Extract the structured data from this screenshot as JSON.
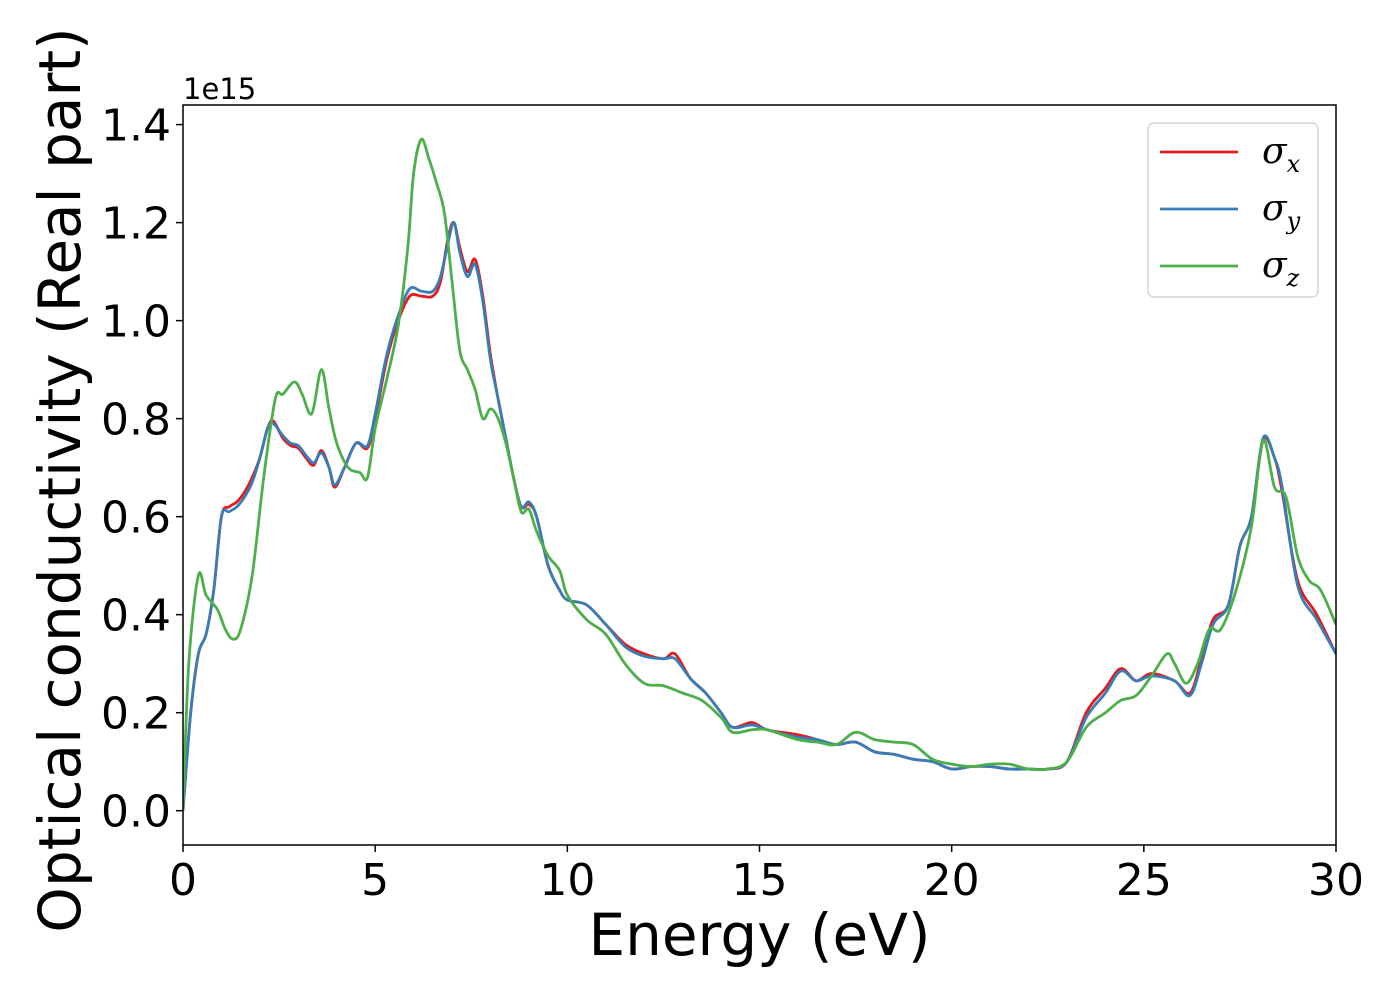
{
  "chart_data": {
    "type": "line",
    "title": "",
    "xlabel": "Energy (eV)",
    "ylabel": "Optical conductivity (Real part)",
    "y_offset_label": "1e15",
    "xlim": [
      0,
      30
    ],
    "ylim": [
      -0.07,
      1.44
    ],
    "xticks": [
      0,
      5,
      10,
      15,
      20,
      25,
      30
    ],
    "xtick_labels": [
      "0",
      "5",
      "10",
      "15",
      "20",
      "25",
      "30"
    ],
    "yticks": [
      0.0,
      0.2,
      0.4,
      0.6,
      0.8,
      1.0,
      1.2,
      1.4
    ],
    "ytick_labels": [
      "0.0",
      "0.2",
      "0.4",
      "0.6",
      "0.8",
      "1.0",
      "1.2",
      "1.4"
    ],
    "grid": false,
    "legend": "top-right",
    "series": [
      {
        "name": "σx",
        "symbol": "σ",
        "subscript": "x",
        "color": "#e41a1c",
        "points": [
          [
            0,
            0.0
          ],
          [
            0.2,
            0.2
          ],
          [
            0.4,
            0.32
          ],
          [
            0.6,
            0.36
          ],
          [
            0.8,
            0.45
          ],
          [
            1.0,
            0.6
          ],
          [
            1.2,
            0.62
          ],
          [
            1.4,
            0.63
          ],
          [
            1.6,
            0.65
          ],
          [
            1.8,
            0.68
          ],
          [
            2.0,
            0.72
          ],
          [
            2.2,
            0.78
          ],
          [
            2.35,
            0.795
          ],
          [
            2.6,
            0.76
          ],
          [
            2.8,
            0.745
          ],
          [
            3.0,
            0.74
          ],
          [
            3.2,
            0.72
          ],
          [
            3.4,
            0.705
          ],
          [
            3.6,
            0.735
          ],
          [
            3.8,
            0.7
          ],
          [
            3.95,
            0.66
          ],
          [
            4.2,
            0.7
          ],
          [
            4.5,
            0.75
          ],
          [
            4.8,
            0.74
          ],
          [
            5.0,
            0.8
          ],
          [
            5.3,
            0.92
          ],
          [
            5.6,
            1.0
          ],
          [
            5.9,
            1.05
          ],
          [
            6.2,
            1.05
          ],
          [
            6.5,
            1.05
          ],
          [
            6.7,
            1.08
          ],
          [
            6.9,
            1.17
          ],
          [
            7.05,
            1.2
          ],
          [
            7.2,
            1.15
          ],
          [
            7.4,
            1.1
          ],
          [
            7.6,
            1.125
          ],
          [
            7.8,
            1.05
          ],
          [
            8.0,
            0.93
          ],
          [
            8.2,
            0.84
          ],
          [
            8.4,
            0.76
          ],
          [
            8.6,
            0.68
          ],
          [
            8.8,
            0.62
          ],
          [
            9.0,
            0.625
          ],
          [
            9.2,
            0.6
          ],
          [
            9.5,
            0.5
          ],
          [
            9.8,
            0.45
          ],
          [
            10.0,
            0.43
          ],
          [
            10.5,
            0.42
          ],
          [
            11.0,
            0.38
          ],
          [
            11.5,
            0.34
          ],
          [
            12.0,
            0.32
          ],
          [
            12.5,
            0.31
          ],
          [
            12.8,
            0.32
          ],
          [
            13.2,
            0.27
          ],
          [
            13.6,
            0.24
          ],
          [
            14.0,
            0.2
          ],
          [
            14.3,
            0.17
          ],
          [
            14.8,
            0.18
          ],
          [
            15.2,
            0.165
          ],
          [
            16.0,
            0.155
          ],
          [
            16.5,
            0.145
          ],
          [
            17.0,
            0.135
          ],
          [
            17.5,
            0.14
          ],
          [
            18.0,
            0.12
          ],
          [
            18.5,
            0.115
          ],
          [
            19.0,
            0.105
          ],
          [
            19.5,
            0.1
          ],
          [
            20.0,
            0.085
          ],
          [
            20.5,
            0.09
          ],
          [
            21.0,
            0.09
          ],
          [
            21.5,
            0.085
          ],
          [
            22.0,
            0.085
          ],
          [
            22.5,
            0.085
          ],
          [
            23.0,
            0.1
          ],
          [
            23.5,
            0.2
          ],
          [
            24.0,
            0.25
          ],
          [
            24.4,
            0.29
          ],
          [
            24.8,
            0.265
          ],
          [
            25.2,
            0.28
          ],
          [
            25.8,
            0.265
          ],
          [
            26.2,
            0.24
          ],
          [
            26.5,
            0.31
          ],
          [
            26.8,
            0.39
          ],
          [
            27.2,
            0.42
          ],
          [
            27.5,
            0.54
          ],
          [
            27.8,
            0.6
          ],
          [
            28.1,
            0.755
          ],
          [
            28.4,
            0.72
          ],
          [
            28.6,
            0.65
          ],
          [
            29.0,
            0.47
          ],
          [
            29.5,
            0.4
          ],
          [
            30.0,
            0.32
          ]
        ]
      },
      {
        "name": "σy",
        "symbol": "σ",
        "subscript": "y",
        "color": "#377eb8",
        "points": [
          [
            0,
            0.0
          ],
          [
            0.2,
            0.2
          ],
          [
            0.4,
            0.32
          ],
          [
            0.6,
            0.36
          ],
          [
            0.8,
            0.45
          ],
          [
            1.0,
            0.6
          ],
          [
            1.2,
            0.61
          ],
          [
            1.4,
            0.62
          ],
          [
            1.6,
            0.64
          ],
          [
            1.8,
            0.67
          ],
          [
            2.0,
            0.72
          ],
          [
            2.2,
            0.78
          ],
          [
            2.35,
            0.79
          ],
          [
            2.6,
            0.765
          ],
          [
            2.8,
            0.75
          ],
          [
            3.0,
            0.745
          ],
          [
            3.2,
            0.725
          ],
          [
            3.4,
            0.71
          ],
          [
            3.6,
            0.73
          ],
          [
            3.8,
            0.7
          ],
          [
            3.95,
            0.665
          ],
          [
            4.2,
            0.7
          ],
          [
            4.5,
            0.75
          ],
          [
            4.8,
            0.745
          ],
          [
            5.0,
            0.81
          ],
          [
            5.3,
            0.93
          ],
          [
            5.6,
            1.01
          ],
          [
            5.9,
            1.065
          ],
          [
            6.2,
            1.06
          ],
          [
            6.5,
            1.06
          ],
          [
            6.7,
            1.09
          ],
          [
            6.9,
            1.16
          ],
          [
            7.05,
            1.2
          ],
          [
            7.2,
            1.14
          ],
          [
            7.4,
            1.09
          ],
          [
            7.6,
            1.115
          ],
          [
            7.8,
            1.04
          ],
          [
            8.0,
            0.92
          ],
          [
            8.2,
            0.84
          ],
          [
            8.4,
            0.76
          ],
          [
            8.6,
            0.68
          ],
          [
            8.8,
            0.62
          ],
          [
            9.0,
            0.63
          ],
          [
            9.2,
            0.6
          ],
          [
            9.5,
            0.5
          ],
          [
            9.8,
            0.45
          ],
          [
            10.0,
            0.43
          ],
          [
            10.5,
            0.42
          ],
          [
            11.0,
            0.38
          ],
          [
            11.5,
            0.335
          ],
          [
            12.0,
            0.315
          ],
          [
            12.5,
            0.31
          ],
          [
            12.8,
            0.31
          ],
          [
            13.2,
            0.27
          ],
          [
            13.6,
            0.24
          ],
          [
            14.0,
            0.2
          ],
          [
            14.3,
            0.17
          ],
          [
            14.8,
            0.175
          ],
          [
            15.2,
            0.165
          ],
          [
            16.0,
            0.15
          ],
          [
            16.5,
            0.145
          ],
          [
            17.0,
            0.135
          ],
          [
            17.5,
            0.14
          ],
          [
            18.0,
            0.12
          ],
          [
            18.5,
            0.115
          ],
          [
            19.0,
            0.105
          ],
          [
            19.5,
            0.1
          ],
          [
            20.0,
            0.085
          ],
          [
            20.5,
            0.09
          ],
          [
            21.0,
            0.09
          ],
          [
            21.5,
            0.085
          ],
          [
            22.0,
            0.085
          ],
          [
            22.5,
            0.085
          ],
          [
            23.0,
            0.1
          ],
          [
            23.5,
            0.19
          ],
          [
            24.0,
            0.24
          ],
          [
            24.4,
            0.285
          ],
          [
            24.8,
            0.265
          ],
          [
            25.2,
            0.275
          ],
          [
            25.8,
            0.265
          ],
          [
            26.2,
            0.235
          ],
          [
            26.5,
            0.3
          ],
          [
            26.8,
            0.38
          ],
          [
            27.2,
            0.42
          ],
          [
            27.5,
            0.54
          ],
          [
            27.8,
            0.6
          ],
          [
            28.1,
            0.76
          ],
          [
            28.4,
            0.72
          ],
          [
            28.6,
            0.66
          ],
          [
            29.0,
            0.46
          ],
          [
            29.5,
            0.39
          ],
          [
            30.0,
            0.32
          ]
        ]
      },
      {
        "name": "σz",
        "symbol": "σ",
        "subscript": "z",
        "color": "#4daf4a",
        "points": [
          [
            0,
            0.0
          ],
          [
            0.15,
            0.3
          ],
          [
            0.4,
            0.48
          ],
          [
            0.6,
            0.44
          ],
          [
            0.9,
            0.41
          ],
          [
            1.1,
            0.37
          ],
          [
            1.3,
            0.35
          ],
          [
            1.5,
            0.37
          ],
          [
            1.8,
            0.48
          ],
          [
            2.1,
            0.68
          ],
          [
            2.4,
            0.84
          ],
          [
            2.6,
            0.85
          ],
          [
            2.9,
            0.875
          ],
          [
            3.1,
            0.85
          ],
          [
            3.35,
            0.81
          ],
          [
            3.6,
            0.9
          ],
          [
            3.8,
            0.82
          ],
          [
            4.0,
            0.75
          ],
          [
            4.3,
            0.7
          ],
          [
            4.6,
            0.69
          ],
          [
            4.8,
            0.68
          ],
          [
            5.0,
            0.78
          ],
          [
            5.3,
            0.88
          ],
          [
            5.6,
            0.99
          ],
          [
            5.85,
            1.15
          ],
          [
            6.0,
            1.3
          ],
          [
            6.2,
            1.37
          ],
          [
            6.4,
            1.33
          ],
          [
            6.6,
            1.28
          ],
          [
            6.8,
            1.22
          ],
          [
            7.0,
            1.08
          ],
          [
            7.2,
            0.94
          ],
          [
            7.4,
            0.9
          ],
          [
            7.6,
            0.86
          ],
          [
            7.8,
            0.8
          ],
          [
            8.0,
            0.82
          ],
          [
            8.2,
            0.8
          ],
          [
            8.4,
            0.75
          ],
          [
            8.6,
            0.68
          ],
          [
            8.8,
            0.61
          ],
          [
            9.0,
            0.615
          ],
          [
            9.2,
            0.57
          ],
          [
            9.5,
            0.52
          ],
          [
            9.8,
            0.49
          ],
          [
            10.0,
            0.44
          ],
          [
            10.5,
            0.39
          ],
          [
            11.0,
            0.36
          ],
          [
            11.5,
            0.3
          ],
          [
            12.0,
            0.26
          ],
          [
            12.5,
            0.255
          ],
          [
            13.0,
            0.24
          ],
          [
            13.5,
            0.225
          ],
          [
            14.0,
            0.19
          ],
          [
            14.3,
            0.16
          ],
          [
            14.8,
            0.165
          ],
          [
            15.2,
            0.165
          ],
          [
            16.0,
            0.145
          ],
          [
            16.5,
            0.14
          ],
          [
            17.0,
            0.135
          ],
          [
            17.5,
            0.16
          ],
          [
            18.0,
            0.145
          ],
          [
            18.5,
            0.14
          ],
          [
            19.0,
            0.135
          ],
          [
            19.5,
            0.105
          ],
          [
            20.0,
            0.095
          ],
          [
            20.5,
            0.09
          ],
          [
            21.0,
            0.095
          ],
          [
            21.5,
            0.095
          ],
          [
            22.0,
            0.085
          ],
          [
            22.5,
            0.085
          ],
          [
            23.0,
            0.1
          ],
          [
            23.5,
            0.17
          ],
          [
            24.0,
            0.2
          ],
          [
            24.4,
            0.225
          ],
          [
            24.8,
            0.235
          ],
          [
            25.2,
            0.275
          ],
          [
            25.6,
            0.32
          ],
          [
            25.8,
            0.3
          ],
          [
            26.1,
            0.26
          ],
          [
            26.4,
            0.3
          ],
          [
            26.7,
            0.37
          ],
          [
            27.0,
            0.37
          ],
          [
            27.4,
            0.45
          ],
          [
            27.8,
            0.58
          ],
          [
            28.1,
            0.755
          ],
          [
            28.4,
            0.66
          ],
          [
            28.7,
            0.64
          ],
          [
            29.0,
            0.52
          ],
          [
            29.3,
            0.47
          ],
          [
            29.6,
            0.45
          ],
          [
            30.0,
            0.38
          ]
        ]
      }
    ]
  }
}
